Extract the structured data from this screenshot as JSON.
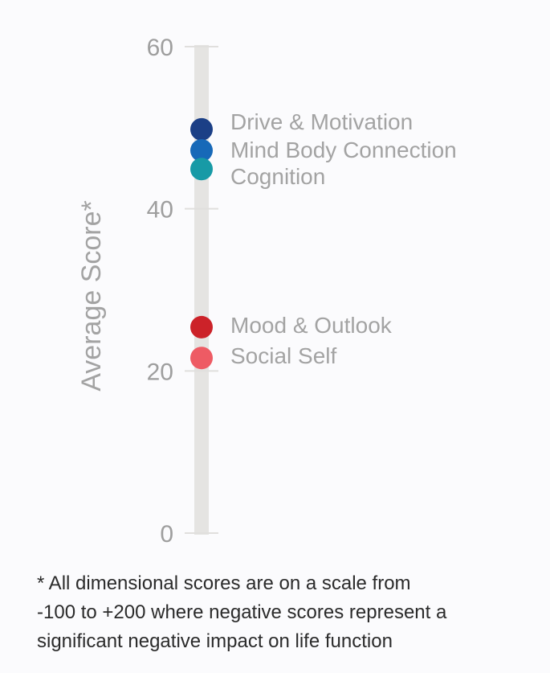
{
  "chart_data": {
    "type": "scatter",
    "title": "",
    "ylabel": "Average Score*",
    "ylim": [
      0,
      60
    ],
    "yticks": [
      0,
      20,
      40,
      60
    ],
    "grid": false,
    "legend": "none",
    "points": [
      {
        "label": "Drive & Motivation",
        "value": 49.8,
        "color": "#1b3f86"
      },
      {
        "label": "Mind Body Connection",
        "value": 47.2,
        "color": "#1769b8"
      },
      {
        "label": "Cognition",
        "value": 44.9,
        "color": "#179aa6"
      },
      {
        "label": "Mood & Outlook",
        "value": 25.4,
        "color": "#cc2229"
      },
      {
        "label": "Social Self",
        "value": 21.6,
        "color": "#ee5b64"
      }
    ]
  },
  "footnote": {
    "lines": [
      "* All dimensional scores are on a scale from",
      "-100 to +200 where negative scores represent a",
      "significant negative impact on life function"
    ]
  },
  "colors": {
    "track": "#e5e4e2",
    "tick": "#e0dfdd",
    "text_muted": "#a3a3a3"
  }
}
